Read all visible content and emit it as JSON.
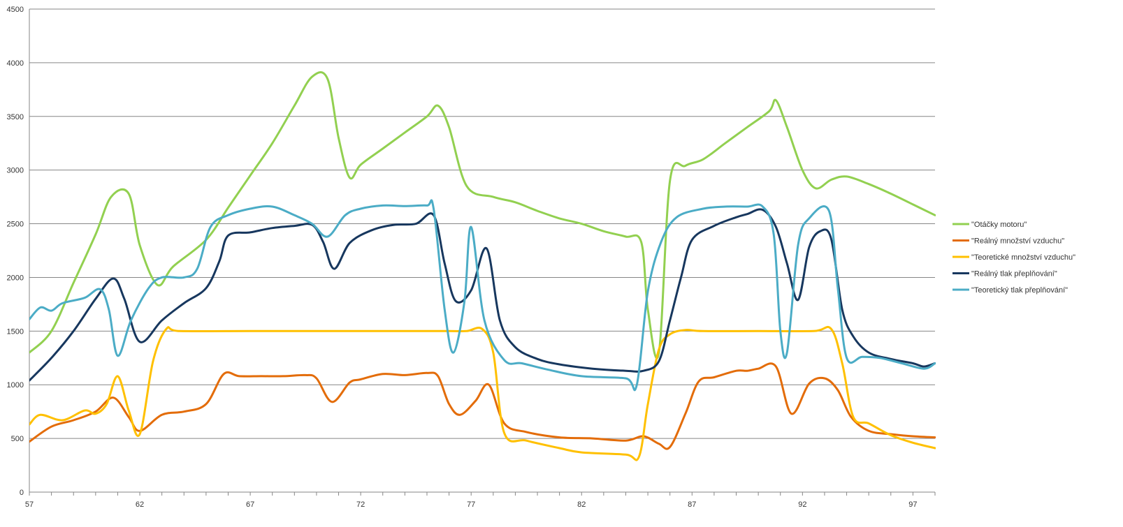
{
  "chart_data": {
    "type": "line",
    "title": "",
    "xlabel": "",
    "ylabel": "",
    "xlim": [
      57,
      98
    ],
    "ylim": [
      0,
      4500
    ],
    "y_ticks": [
      0,
      500,
      1000,
      1500,
      2000,
      2500,
      3000,
      3500,
      4000,
      4500
    ],
    "x_ticks": [
      57,
      62,
      67,
      72,
      77,
      82,
      87,
      92,
      97
    ],
    "grid": "horizontal",
    "legend_position": "right",
    "smooth": true,
    "series": [
      {
        "name": "\"Otáčky motoru\"",
        "color": "#92d050",
        "points": [
          [
            57,
            1300
          ],
          [
            58,
            1500
          ],
          [
            59,
            1950
          ],
          [
            60,
            2400
          ],
          [
            60.7,
            2750
          ],
          [
            61.5,
            2780
          ],
          [
            62,
            2300
          ],
          [
            62.8,
            1930
          ],
          [
            63.5,
            2100
          ],
          [
            65,
            2350
          ],
          [
            66,
            2650
          ],
          [
            67,
            2950
          ],
          [
            68,
            3250
          ],
          [
            69,
            3600
          ],
          [
            69.8,
            3870
          ],
          [
            70.5,
            3850
          ],
          [
            71,
            3300
          ],
          [
            71.5,
            2930
          ],
          [
            72,
            3050
          ],
          [
            73,
            3200
          ],
          [
            74,
            3350
          ],
          [
            75,
            3500
          ],
          [
            75.5,
            3600
          ],
          [
            76,
            3400
          ],
          [
            76.8,
            2850
          ],
          [
            78,
            2750
          ],
          [
            79,
            2700
          ],
          [
            80,
            2620
          ],
          [
            81,
            2550
          ],
          [
            82,
            2500
          ],
          [
            83,
            2430
          ],
          [
            84,
            2380
          ],
          [
            84.7,
            2330
          ],
          [
            85,
            1700
          ],
          [
            85.5,
            1300
          ],
          [
            86,
            2900
          ],
          [
            86.7,
            3040
          ],
          [
            87.5,
            3100
          ],
          [
            88.5,
            3250
          ],
          [
            89.5,
            3400
          ],
          [
            90.5,
            3550
          ],
          [
            90.8,
            3650
          ],
          [
            91.3,
            3400
          ],
          [
            92,
            3000
          ],
          [
            92.6,
            2830
          ],
          [
            93.3,
            2910
          ],
          [
            94,
            2940
          ],
          [
            95,
            2870
          ],
          [
            96,
            2780
          ],
          [
            97,
            2680
          ],
          [
            98,
            2580
          ]
        ]
      },
      {
        "name": "\"Reálný množství vzduchu\"",
        "color": "#e36c09",
        "points": [
          [
            57,
            470
          ],
          [
            58,
            610
          ],
          [
            59,
            670
          ],
          [
            60,
            750
          ],
          [
            60.8,
            880
          ],
          [
            61.5,
            700
          ],
          [
            62,
            570
          ],
          [
            63,
            720
          ],
          [
            64,
            750
          ],
          [
            65,
            820
          ],
          [
            65.8,
            1100
          ],
          [
            66.5,
            1080
          ],
          [
            67.5,
            1080
          ],
          [
            68.5,
            1080
          ],
          [
            69.5,
            1090
          ],
          [
            70,
            1060
          ],
          [
            70.7,
            840
          ],
          [
            71.5,
            1020
          ],
          [
            72,
            1050
          ],
          [
            73,
            1100
          ],
          [
            74,
            1090
          ],
          [
            75,
            1110
          ],
          [
            75.5,
            1080
          ],
          [
            76,
            820
          ],
          [
            76.5,
            720
          ],
          [
            77.2,
            850
          ],
          [
            77.8,
            1000
          ],
          [
            78.5,
            640
          ],
          [
            79.5,
            560
          ],
          [
            81,
            510
          ],
          [
            82.5,
            500
          ],
          [
            84,
            480
          ],
          [
            84.8,
            520
          ],
          [
            85.5,
            450
          ],
          [
            86,
            420
          ],
          [
            86.7,
            730
          ],
          [
            87.3,
            1030
          ],
          [
            88,
            1070
          ],
          [
            89,
            1130
          ],
          [
            89.5,
            1130
          ],
          [
            90,
            1150
          ],
          [
            90.8,
            1170
          ],
          [
            91.5,
            730
          ],
          [
            92.3,
            1010
          ],
          [
            93,
            1060
          ],
          [
            93.6,
            950
          ],
          [
            94.2,
            700
          ],
          [
            95,
            570
          ],
          [
            96,
            540
          ],
          [
            97,
            520
          ],
          [
            98,
            510
          ]
        ]
      },
      {
        "name": "\"Teoretické množství vzduchu\"",
        "color": "#ffc000",
        "points": [
          [
            57,
            630
          ],
          [
            57.5,
            720
          ],
          [
            58.5,
            670
          ],
          [
            59.5,
            760
          ],
          [
            60,
            730
          ],
          [
            60.5,
            820
          ],
          [
            61,
            1080
          ],
          [
            61.5,
            760
          ],
          [
            62,
            540
          ],
          [
            62.6,
            1220
          ],
          [
            63.2,
            1520
          ],
          [
            63.8,
            1500
          ],
          [
            67,
            1500
          ],
          [
            70,
            1500
          ],
          [
            73,
            1500
          ],
          [
            76,
            1500
          ],
          [
            76.8,
            1500
          ],
          [
            77.5,
            1520
          ],
          [
            78,
            1300
          ],
          [
            78.5,
            550
          ],
          [
            79.5,
            480
          ],
          [
            81,
            410
          ],
          [
            82,
            370
          ],
          [
            84,
            350
          ],
          [
            84.6,
            330
          ],
          [
            85,
            820
          ],
          [
            85.5,
            1330
          ],
          [
            86,
            1470
          ],
          [
            86.7,
            1510
          ],
          [
            87.5,
            1500
          ],
          [
            90,
            1500
          ],
          [
            92.5,
            1500
          ],
          [
            93.3,
            1520
          ],
          [
            93.8,
            1200
          ],
          [
            94.3,
            700
          ],
          [
            95,
            640
          ],
          [
            96,
            530
          ],
          [
            97,
            460
          ],
          [
            98,
            410
          ]
        ]
      },
      {
        "name": "\"Reálný tlak přeplňování\"",
        "color": "#17375e",
        "points": [
          [
            57,
            1040
          ],
          [
            58,
            1250
          ],
          [
            59,
            1500
          ],
          [
            60,
            1800
          ],
          [
            60.8,
            1990
          ],
          [
            61.3,
            1800
          ],
          [
            62,
            1400
          ],
          [
            63,
            1600
          ],
          [
            64,
            1760
          ],
          [
            65,
            1900
          ],
          [
            65.6,
            2150
          ],
          [
            66,
            2390
          ],
          [
            67,
            2420
          ],
          [
            68,
            2460
          ],
          [
            69,
            2480
          ],
          [
            69.8,
            2490
          ],
          [
            70.3,
            2330
          ],
          [
            70.8,
            2080
          ],
          [
            71.5,
            2320
          ],
          [
            72.5,
            2440
          ],
          [
            73.5,
            2490
          ],
          [
            74.5,
            2500
          ],
          [
            75.3,
            2580
          ],
          [
            75.8,
            2130
          ],
          [
            76.3,
            1780
          ],
          [
            77,
            1880
          ],
          [
            77.7,
            2270
          ],
          [
            78.3,
            1600
          ],
          [
            79,
            1350
          ],
          [
            80,
            1240
          ],
          [
            81,
            1190
          ],
          [
            82.5,
            1150
          ],
          [
            84,
            1130
          ],
          [
            84.8,
            1130
          ],
          [
            85.5,
            1220
          ],
          [
            86,
            1600
          ],
          [
            86.5,
            2000
          ],
          [
            87,
            2350
          ],
          [
            88,
            2480
          ],
          [
            89,
            2560
          ],
          [
            89.5,
            2590
          ],
          [
            90.2,
            2630
          ],
          [
            90.8,
            2470
          ],
          [
            91.3,
            2130
          ],
          [
            91.8,
            1790
          ],
          [
            92.3,
            2280
          ],
          [
            92.8,
            2430
          ],
          [
            93.3,
            2360
          ],
          [
            93.8,
            1700
          ],
          [
            94.3,
            1450
          ],
          [
            95,
            1300
          ],
          [
            96,
            1240
          ],
          [
            97,
            1200
          ],
          [
            97.5,
            1170
          ],
          [
            98,
            1200
          ]
        ]
      },
      {
        "name": "\"Teoretický tlak přeplňování\"",
        "color": "#4bacc6",
        "points": [
          [
            57,
            1610
          ],
          [
            57.5,
            1720
          ],
          [
            58,
            1690
          ],
          [
            58.5,
            1760
          ],
          [
            59.5,
            1810
          ],
          [
            60.2,
            1890
          ],
          [
            60.6,
            1700
          ],
          [
            61,
            1270
          ],
          [
            61.6,
            1600
          ],
          [
            62.4,
            1900
          ],
          [
            63,
            2000
          ],
          [
            64,
            2000
          ],
          [
            64.6,
            2080
          ],
          [
            65.2,
            2470
          ],
          [
            66,
            2580
          ],
          [
            67,
            2640
          ],
          [
            68,
            2660
          ],
          [
            69,
            2580
          ],
          [
            69.8,
            2500
          ],
          [
            70.5,
            2380
          ],
          [
            71.3,
            2580
          ],
          [
            72,
            2640
          ],
          [
            73,
            2670
          ],
          [
            74,
            2665
          ],
          [
            75,
            2670
          ],
          [
            75.3,
            2640
          ],
          [
            75.8,
            1700
          ],
          [
            76.2,
            1300
          ],
          [
            76.7,
            1780
          ],
          [
            77,
            2470
          ],
          [
            77.6,
            1600
          ],
          [
            78.5,
            1230
          ],
          [
            79.3,
            1200
          ],
          [
            80.5,
            1140
          ],
          [
            82,
            1080
          ],
          [
            84,
            1060
          ],
          [
            84.5,
            1000
          ],
          [
            85,
            1870
          ],
          [
            85.6,
            2330
          ],
          [
            86.3,
            2560
          ],
          [
            87.5,
            2640
          ],
          [
            88.5,
            2660
          ],
          [
            89.5,
            2660
          ],
          [
            90.2,
            2660
          ],
          [
            90.7,
            2400
          ],
          [
            91,
            1500
          ],
          [
            91.3,
            1300
          ],
          [
            91.8,
            2300
          ],
          [
            92.3,
            2550
          ],
          [
            93.2,
            2620
          ],
          [
            93.6,
            1900
          ],
          [
            94,
            1250
          ],
          [
            94.7,
            1260
          ],
          [
            95.5,
            1250
          ],
          [
            96.5,
            1200
          ],
          [
            97.5,
            1150
          ],
          [
            98,
            1200
          ]
        ]
      }
    ]
  }
}
